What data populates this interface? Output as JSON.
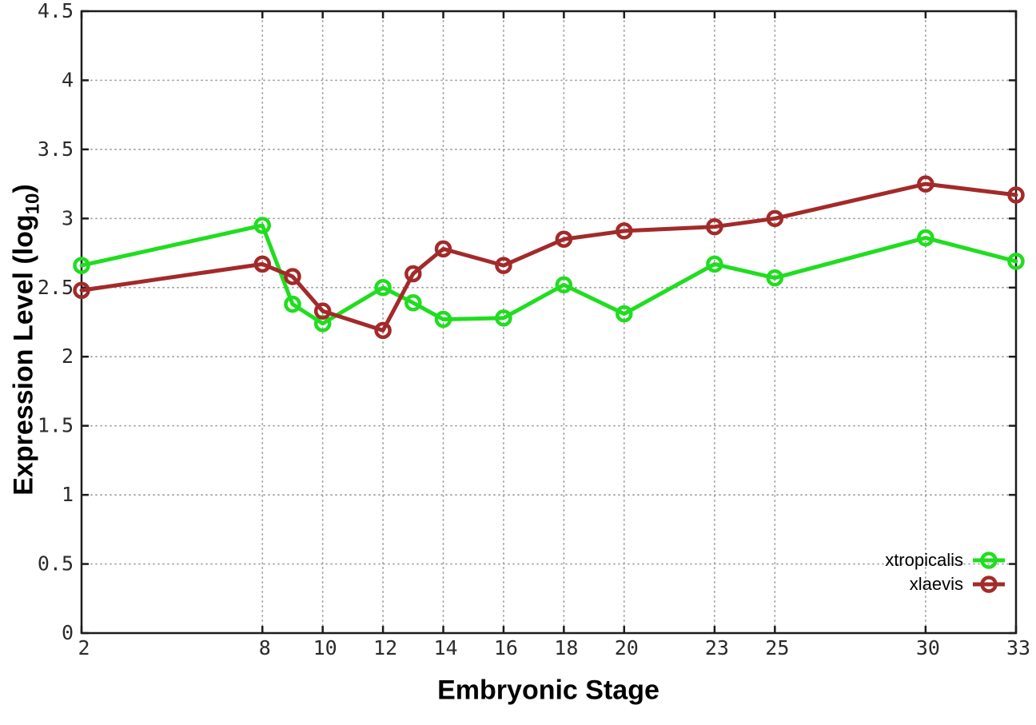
{
  "chart_data": {
    "type": "line",
    "title": "",
    "xlabel": "Embryonic Stage",
    "ylabel": "Expression Level (log10)",
    "ylabel_parts": {
      "main": "Expression Level (log",
      "sub": "10",
      "close": ")"
    },
    "x": [
      2,
      8,
      9,
      10,
      12,
      13,
      14,
      16,
      18,
      20,
      23,
      25,
      30,
      33
    ],
    "series": [
      {
        "name": "xtropicalis",
        "color": "#20dd20",
        "values": [
          2.66,
          2.95,
          2.38,
          2.24,
          2.5,
          2.39,
          2.27,
          2.28,
          2.52,
          2.31,
          2.67,
          2.57,
          2.86,
          2.69
        ]
      },
      {
        "name": "xlaevis",
        "color": "#a32a2a",
        "values": [
          2.48,
          2.67,
          2.58,
          2.33,
          2.19,
          2.6,
          2.78,
          2.66,
          2.85,
          2.91,
          2.94,
          3.0,
          3.25,
          3.17
        ]
      }
    ],
    "xlim": [
      2,
      33
    ],
    "ylim": [
      0,
      4.5
    ],
    "xticks": [
      2,
      8,
      10,
      12,
      14,
      16,
      18,
      20,
      23,
      25,
      30,
      33
    ],
    "xtick_labels": [
      "2",
      "8",
      "10",
      "12",
      "14",
      "16",
      "18",
      "20",
      "23",
      "25",
      "30",
      "33"
    ],
    "yticks": [
      0,
      0.5,
      1,
      1.5,
      2,
      2.5,
      3,
      3.5,
      4,
      4.5
    ],
    "ytick_labels": [
      "0",
      "0.5",
      "1",
      "1.5",
      "2",
      "2.5",
      "3",
      "3.5",
      "4",
      "4.5"
    ],
    "grid": true,
    "grid_style": "dotted",
    "legend_position": "bottom-right",
    "axis_color": "#1c1c1c",
    "grid_color": "#9a9a9a",
    "tick_label_color": "#2b2b2b"
  }
}
